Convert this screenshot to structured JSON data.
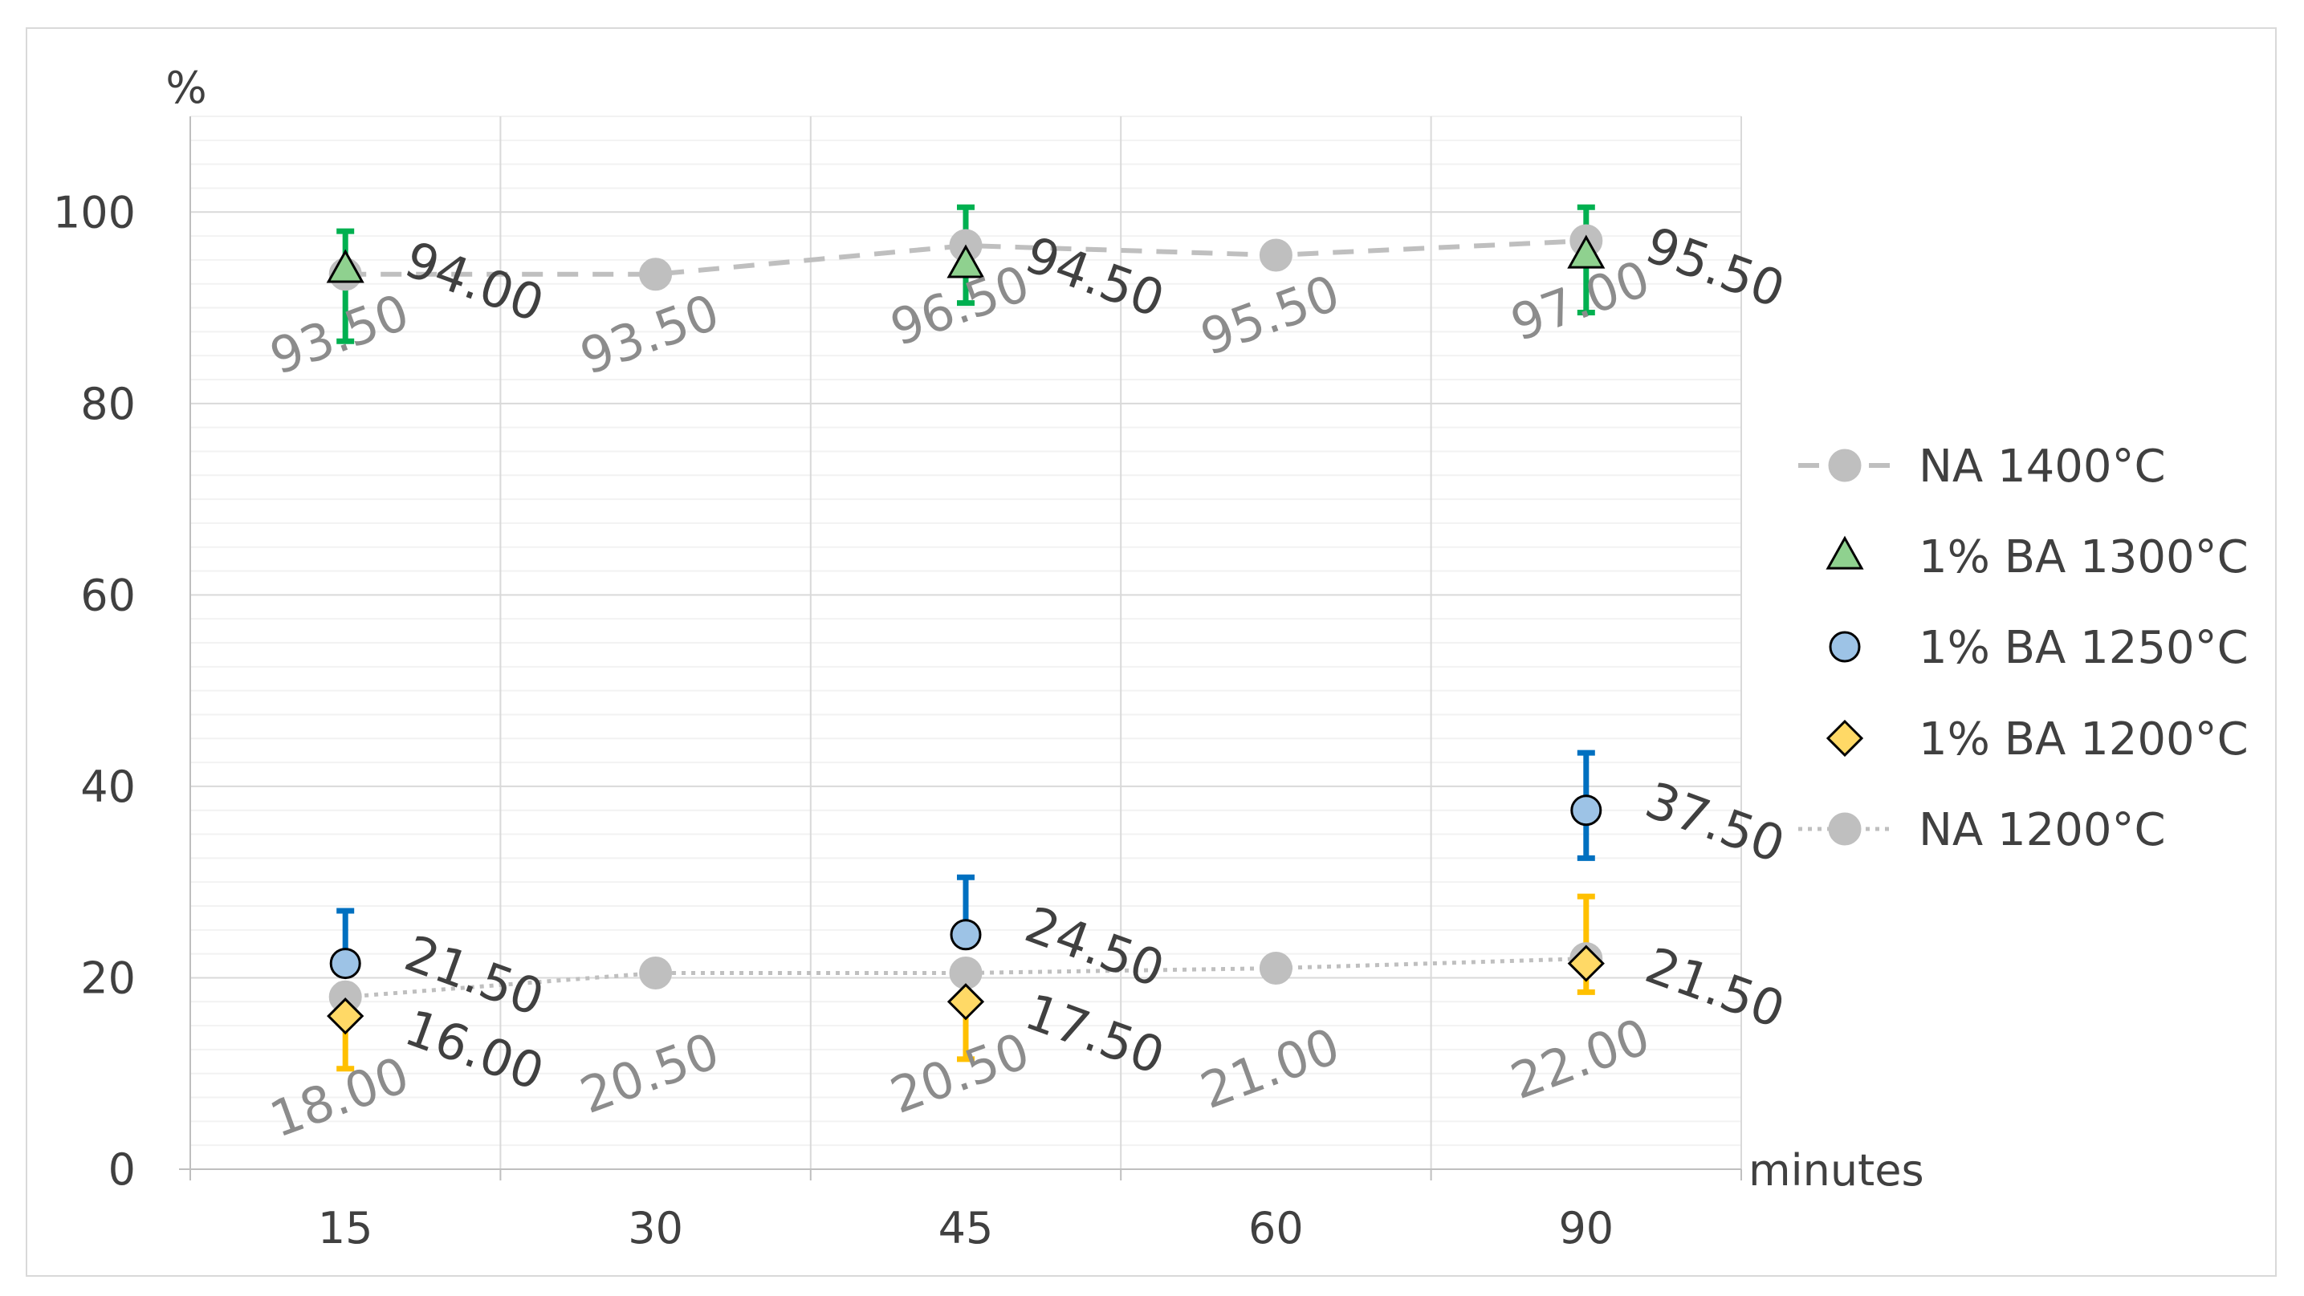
{
  "chart_data": {
    "type": "scatter",
    "xlabel": "minutes",
    "ylabel": "%",
    "categories": [
      "15",
      "30",
      "45",
      "60",
      "90"
    ],
    "ylim": [
      0,
      110
    ],
    "yticks": [
      0,
      20,
      40,
      60,
      80,
      100
    ],
    "grid": "major and minor horizontal, vertical category lines",
    "legend_position": "right",
    "series": [
      {
        "name": "NA 1400°C",
        "marker": "circle",
        "line": "dashed",
        "color": "#bfbfbf",
        "edge": "#bfbfbf",
        "values": [
          93.5,
          93.5,
          96.5,
          95.5,
          97.0
        ],
        "labels": [
          "93.50",
          "93.50",
          "96.50",
          "95.50",
          "97.00"
        ]
      },
      {
        "name": "1% BA 1300°C",
        "marker": "triangle",
        "line": "none",
        "color": "#8fd18f",
        "edge": "#000000",
        "err_color": "#00b050",
        "x_index": [
          0,
          2,
          4
        ],
        "values": [
          94.0,
          94.5,
          95.5
        ],
        "err": [
          [
            7.5,
            4.0
          ],
          [
            4.0,
            6.0
          ],
          [
            6.0,
            5.0
          ]
        ],
        "labels": [
          "94.00",
          "94.50",
          "95.50"
        ]
      },
      {
        "name": "1% BA 1250°C",
        "marker": "circle",
        "line": "none",
        "color": "#9dc3e6",
        "edge": "#000000",
        "err_color": "#0070c0",
        "x_index": [
          0,
          2,
          4
        ],
        "values": [
          21.5,
          24.5,
          37.5
        ],
        "err": [
          [
            0,
            5.5
          ],
          [
            0,
            6.0
          ],
          [
            5.0,
            6.0
          ]
        ],
        "labels": [
          "21.50",
          "24.50",
          "37.50"
        ]
      },
      {
        "name": "1% BA 1200°C",
        "marker": "diamond",
        "line": "none",
        "color": "#ffd966",
        "edge": "#000000",
        "err_color": "#ffc000",
        "x_index": [
          0,
          2,
          4
        ],
        "values": [
          16.0,
          17.5,
          21.5
        ],
        "err": [
          [
            5.5,
            0
          ],
          [
            6.0,
            0
          ],
          [
            3.0,
            7.0
          ]
        ],
        "labels": [
          "16.00",
          "17.50",
          "21.50"
        ]
      },
      {
        "name": "NA 1200°C",
        "marker": "circle",
        "line": "dotted",
        "color": "#bfbfbf",
        "edge": "#bfbfbf",
        "values": [
          18.0,
          20.5,
          20.5,
          21.0,
          22.0
        ],
        "labels": [
          "18.00",
          "20.50",
          "20.50",
          "21.00",
          "22.00"
        ]
      }
    ]
  }
}
